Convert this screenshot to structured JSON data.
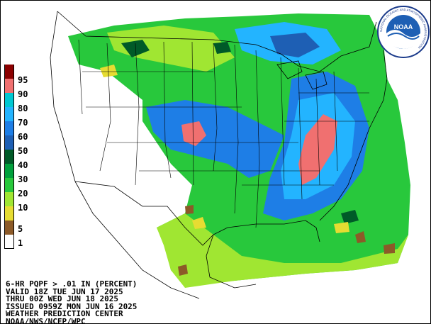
{
  "legend": {
    "items": [
      {
        "label": "95",
        "color": "#8b0000"
      },
      {
        "label": "90",
        "color": "#f07070"
      },
      {
        "label": "80",
        "color": "#00c8d2"
      },
      {
        "label": "70",
        "color": "#23b4ff"
      },
      {
        "label": "60",
        "color": "#1e7ee6"
      },
      {
        "label": "50",
        "color": "#1e5fb4"
      },
      {
        "label": "40",
        "color": "#005a28"
      },
      {
        "label": "30",
        "color": "#00a03c"
      },
      {
        "label": "20",
        "color": "#28c83c"
      },
      {
        "label": "10",
        "color": "#a0e632"
      },
      {
        "label": "5",
        "color": "#e6dc32"
      },
      {
        "label": "1",
        "color": "#8c5a28"
      },
      {
        "label": "",
        "color": "#ffffff"
      }
    ]
  },
  "info": {
    "line1": "6-HR PQPF > .01 IN (PERCENT)",
    "line2": "VALID 18Z TUE JUN 17 2025",
    "line3": "THRU 00Z WED JUN 18 2025",
    "line4": "ISSUED 0959Z MON JUN 16 2025",
    "line5": "WEATHER PREDICTION CENTER",
    "line6": "NOAA/NWS/NCEP/WPC"
  },
  "logo": {
    "text": "NOAA",
    "ring_text": "NATIONAL OCEANIC AND ATMOSPHERIC ADMINISTRATION"
  },
  "colors": {
    "land_blank": "#ffffff",
    "ocean": "#ffffff",
    "boundary": "#000000"
  }
}
